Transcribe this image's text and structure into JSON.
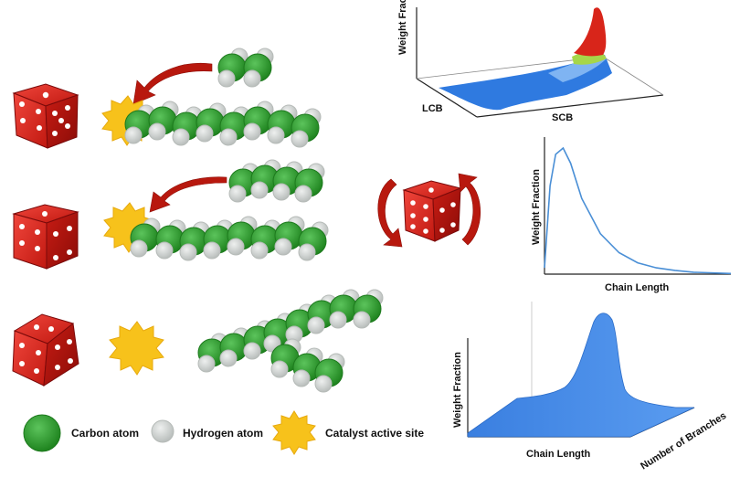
{
  "legend": {
    "carbon": "Carbon atom",
    "hydrogen": "Hydrogen atom",
    "site": "Catalyst active site"
  },
  "chart_3d_top": {
    "ylabel": "Weight Fraction",
    "axis1": "LCB",
    "axis2": "SCB"
  },
  "chart_data": [
    {
      "type": "line",
      "ylabel": "Weight Fraction",
      "xlabel": "Chain Length",
      "x": [
        0,
        0.03,
        0.06,
        0.1,
        0.14,
        0.2,
        0.3,
        0.4,
        0.5,
        0.6,
        0.7,
        0.8,
        1.0
      ],
      "values": [
        0.05,
        0.7,
        0.95,
        1.0,
        0.88,
        0.6,
        0.32,
        0.17,
        0.09,
        0.05,
        0.03,
        0.015,
        0.005
      ],
      "grid": false
    },
    {
      "type": "area",
      "ylabel": "Weight Fraction",
      "xlabel": "Chain Length",
      "zlabel": "Number of Branches"
    }
  ],
  "colors": {
    "carbon": "#2e9c2e",
    "hydrogen": "#d4d8d6",
    "site": "#f7c21b",
    "die": "#d9221b",
    "arrow": "#b8180e",
    "surface": "#3f85e6"
  }
}
